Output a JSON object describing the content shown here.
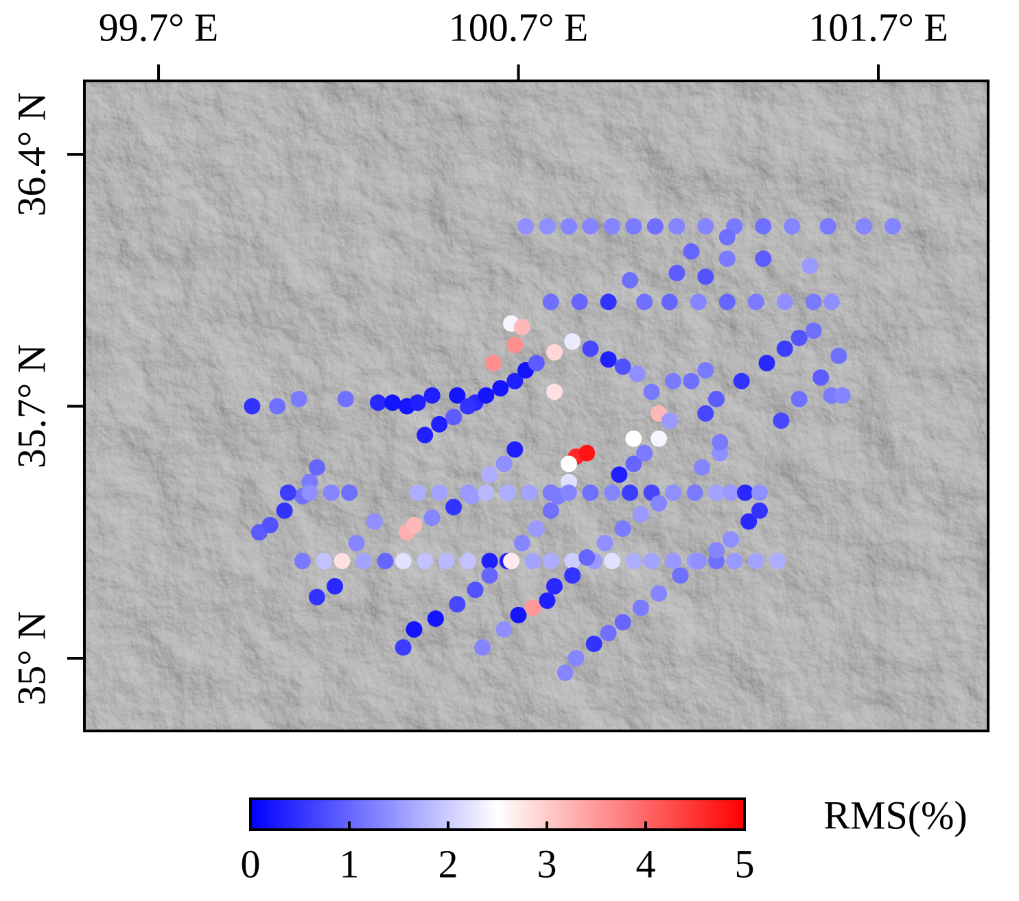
{
  "chart_data": {
    "type": "scatter",
    "x": [
      100.72,
      100.78,
      100.84,
      100.9,
      100.96,
      101.02,
      101.08,
      101.14,
      101.22,
      101.3,
      101.38,
      101.46,
      101.56,
      101.66,
      101.74,
      101.18,
      101.28,
      101.38,
      101.51,
      101.28,
      100.79,
      100.87,
      100.95,
      101.05,
      101.12,
      101.2,
      101.28,
      101.36,
      101.44,
      101.52,
      101.57,
      101.01,
      101.14,
      101.22,
      100.68,
      100.71,
      100.69,
      100.63,
      100.8,
      100.8,
      100.85,
      100.44,
      100.48,
      100.52,
      100.58,
      100.61,
      100.65,
      100.69,
      100.72,
      100.75,
      99.96,
      100.03,
      100.09,
      100.22,
      100.31,
      100.35,
      100.39,
      100.42,
      100.46,
      100.53,
      100.56,
      100.9,
      100.95,
      100.99,
      101.03,
      101.07,
      101.09,
      101.12,
      101.22,
      101.25,
      101.32,
      101.39,
      101.44,
      101.48,
      101.52,
      101.43,
      101.48,
      101.54,
      101.59,
      101.13,
      101.18,
      101.22,
      101.57,
      101.6,
      101.02,
      101.09,
      100.86,
      100.89,
      100.84,
      100.67,
      100.71,
      100.75,
      100.79,
      100.81,
      100.84,
      100.39,
      100.41,
      100.46,
      100.52,
      100.57,
      100.62,
      100.66,
      100.69,
      100.14,
      100.19,
      100.21,
      100.25,
      100.3,
      99.98,
      100.01,
      100.05,
      100.1,
      100.12,
      100.14,
      100.06,
      100.12,
      100.18,
      100.23,
      100.42,
      100.48,
      100.56,
      100.61,
      100.67,
      100.73,
      100.79,
      100.84,
      100.9,
      100.96,
      101.01,
      101.07,
      101.13,
      101.19,
      101.25,
      101.29,
      101.33,
      101.37,
      101.34,
      101.37,
      100.1,
      100.16,
      100.21,
      100.27,
      100.33,
      100.38,
      100.44,
      100.5,
      100.56,
      100.62,
      100.68,
      100.74,
      100.79,
      100.85,
      100.91,
      100.96,
      101.02,
      101.07,
      101.13,
      101.19,
      101.25,
      101.3,
      101.36,
      101.42,
      100.38,
      100.41,
      100.47,
      100.53,
      100.58,
      100.62,
      100.6,
      100.66,
      100.7,
      100.74,
      100.78,
      100.8,
      100.85,
      100.89,
      100.94,
      100.99,
      101.04,
      101.09,
      100.83,
      100.86,
      100.91,
      100.95,
      100.99,
      101.04,
      101.09,
      101.15,
      101.2,
      101.25,
      101.29,
      100.98,
      101.02,
      101.05,
      101.21,
      101.26,
      101.26
    ],
    "values": [
      36.2,
      36.2,
      36.2,
      36.2,
      36.2,
      36.2,
      36.2,
      36.2,
      36.2,
      36.2,
      36.2,
      36.2,
      36.2,
      36.2,
      36.2,
      36.13,
      36.11,
      36.11,
      36.09,
      36.17,
      35.99,
      35.99,
      35.99,
      35.99,
      35.99,
      35.99,
      35.99,
      35.99,
      35.99,
      35.99,
      35.99,
      36.05,
      36.07,
      36.06,
      35.93,
      35.92,
      35.87,
      35.82,
      35.74,
      35.85,
      35.88,
      35.62,
      35.65,
      35.67,
      35.71,
      35.73,
      35.75,
      35.77,
      35.8,
      35.82,
      35.7,
      35.7,
      35.72,
      35.72,
      35.71,
      35.71,
      35.7,
      35.71,
      35.73,
      35.73,
      35.7,
      35.86,
      35.83,
      35.81,
      35.79,
      35.74,
      35.68,
      35.66,
      35.68,
      35.72,
      35.77,
      35.82,
      35.86,
      35.89,
      35.91,
      35.66,
      35.72,
      35.78,
      35.84,
      35.77,
      35.77,
      35.8,
      35.73,
      35.73,
      35.61,
      35.61,
      35.56,
      35.57,
      35.54,
      35.27,
      35.32,
      35.36,
      35.41,
      35.45,
      35.49,
      35.35,
      35.37,
      35.39,
      35.42,
      35.45,
      35.51,
      35.54,
      35.58,
      35.17,
      35.2,
      35.27,
      35.32,
      35.38,
      35.35,
      35.37,
      35.41,
      35.45,
      35.49,
      35.53,
      35.46,
      35.46,
      35.46,
      35.46,
      35.46,
      35.46,
      35.46,
      35.46,
      35.46,
      35.46,
      35.46,
      35.46,
      35.46,
      35.46,
      35.46,
      35.46,
      35.46,
      35.46,
      35.46,
      35.46,
      35.46,
      35.46,
      35.38,
      35.41,
      35.27,
      35.27,
      35.27,
      35.27,
      35.27,
      35.27,
      35.27,
      35.27,
      35.27,
      35.27,
      35.27,
      35.27,
      35.27,
      35.27,
      35.27,
      35.27,
      35.27,
      35.27,
      35.27,
      35.27,
      35.27,
      35.27,
      35.27,
      35.27,
      35.03,
      35.08,
      35.11,
      35.15,
      35.19,
      35.23,
      35.03,
      35.08,
      35.12,
      35.14,
      35.16,
      35.2,
      35.23,
      35.28,
      35.32,
      35.36,
      35.4,
      35.43,
      34.96,
      35.0,
      35.04,
      35.07,
      35.1,
      35.14,
      35.18,
      35.23,
      35.27,
      35.3,
      35.33,
      35.51,
      35.54,
      35.57,
      35.53,
      35.57,
      35.6
    ],
    "color_values": [
      1.4,
      1.4,
      1.3,
      1.3,
      1.3,
      1.2,
      1.1,
      1.3,
      1.3,
      1.2,
      1.1,
      1.3,
      1.2,
      1.3,
      1.3,
      1.0,
      1.2,
      0.9,
      1.5,
      1.1,
      1.1,
      1.0,
      0.5,
      1.1,
      1.0,
      1.3,
      1.0,
      1.2,
      1.4,
      1.2,
      1.4,
      1.1,
      0.9,
      0.8,
      2.4,
      3.2,
      3.6,
      3.6,
      2.8,
      2.9,
      2.3,
      0.3,
      0.3,
      0.9,
      0.4,
      0.2,
      0.2,
      0.3,
      0.2,
      0.9,
      0.5,
      1.1,
      1.2,
      1.1,
      0.4,
      0.2,
      0.2,
      0.3,
      0.3,
      0.2,
      0.5,
      0.7,
      0.3,
      0.8,
      1.4,
      1.2,
      3.2,
      1.5,
      0.7,
      0.9,
      0.5,
      0.4,
      0.6,
      0.8,
      1.1,
      0.7,
      1.1,
      0.9,
      1.1,
      1.2,
      1.1,
      1.2,
      1.2,
      1.3,
      2.5,
      2.4,
      4.6,
      4.8,
      2.5,
      0.3,
      1.3,
      1.5,
      1.1,
      1.2,
      2.2,
      3.3,
      3.2,
      1.3,
      0.5,
      1.5,
      1.7,
      1.4,
      0.3,
      0.5,
      0.4,
      0.8,
      1.3,
      1.4,
      0.9,
      0.8,
      0.5,
      1.1,
      1.2,
      1.0,
      0.6,
      1.4,
      1.3,
      1.1,
      1.7,
      1.6,
      1.5,
      1.8,
      1.7,
      1.6,
      1.2,
      1.3,
      1.1,
      1.3,
      0.6,
      0.7,
      1.4,
      1.2,
      1.6,
      1.5,
      0.4,
      1.4,
      0.4,
      0.5,
      1.2,
      1.9,
      2.8,
      1.6,
      1.0,
      2.2,
      1.9,
      1.8,
      1.9,
      0.3,
      2.7,
      1.6,
      1.7,
      2.0,
      1.5,
      2.2,
      1.7,
      1.6,
      1.5,
      1.5,
      1.1,
      1.5,
      1.6,
      1.7,
      0.6,
      0.2,
      0.2,
      0.7,
      0.8,
      1.0,
      1.3,
      1.4,
      0.2,
      3.5,
      0.3,
      0.4,
      0.5,
      1.0,
      1.4,
      1.2,
      1.5,
      1.3,
      1.3,
      1.3,
      0.5,
      1.1,
      1.0,
      1.2,
      1.3,
      1.1,
      1.4,
      1.3,
      1.4,
      0.3,
      1.0,
      1.2,
      1.3,
      1.4,
      1.2
    ],
    "xlim": [
      99.494,
      102.005
    ],
    "ylim": [
      34.798,
      36.604
    ],
    "xticks": [
      {
        "value": 99.7,
        "label": "99.7° E"
      },
      {
        "value": 100.7,
        "label": "100.7° E"
      },
      {
        "value": 101.7,
        "label": "101.7° E"
      }
    ],
    "yticks": [
      {
        "value": 36.4,
        "label": "36.4° N"
      },
      {
        "value": 35.7,
        "label": "35.7° N"
      },
      {
        "value": 35,
        "label": "35° N"
      }
    ],
    "colormap": [
      "#0000ff",
      "#ffffff",
      "#ff0000"
    ],
    "clim": [
      0,
      5
    ],
    "colorbar_ticks": [
      0,
      1,
      2,
      3,
      4,
      5
    ],
    "colorbar_label": "RMS(%)"
  }
}
